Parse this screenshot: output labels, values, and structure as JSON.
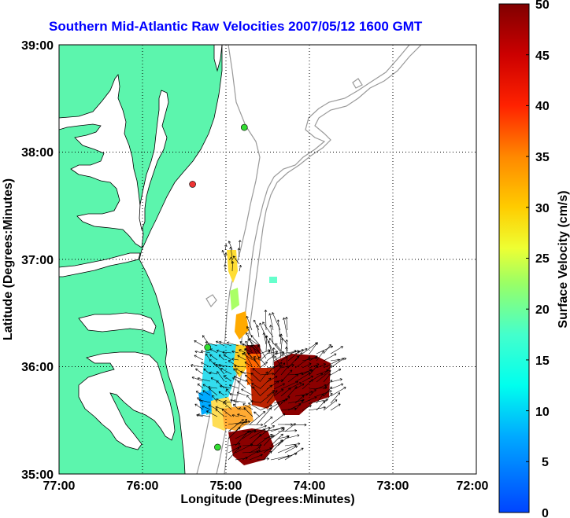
{
  "title": "Southern Mid-Atlantic Raw Velocities 2007/05/12 1600 GMT",
  "x_axis": {
    "label": "Longitude (Degrees:Minutes)",
    "ticks": [
      "77:00",
      "76:00",
      "75:00",
      "74:00",
      "73:00",
      "72:00"
    ]
  },
  "y_axis": {
    "label": "Latitude (Degrees:Minutes)",
    "ticks": [
      "39:00",
      "38:00",
      "37:00",
      "36:00",
      "35:00"
    ]
  },
  "colorbar": {
    "label": "Surface Velocity (cm/s)",
    "ticks": [
      "50",
      "45",
      "40",
      "35",
      "30",
      "25",
      "20",
      "15",
      "10",
      "5",
      "0"
    ]
  },
  "colors": {
    "land": "#5cf5ad",
    "title": "#0000ff",
    "bathymetry": "#999999",
    "high_velocity": "#8b0000",
    "station_green": "#33dd33",
    "station_red": "#ee3333"
  },
  "chart_data": {
    "type": "map",
    "lon_range": [
      -77,
      -72
    ],
    "lat_range": [
      35,
      39
    ],
    "grid": true,
    "velocity_range_cms": [
      0,
      50
    ],
    "stations": [
      {
        "lon": -74.78,
        "lat": 38.23,
        "status": "active"
      },
      {
        "lon": -75.4,
        "lat": 37.7,
        "status": "inactive"
      },
      {
        "lon": -75.22,
        "lat": 36.18,
        "status": "active"
      },
      {
        "lon": -75.1,
        "lat": 35.25,
        "status": "active"
      }
    ]
  }
}
